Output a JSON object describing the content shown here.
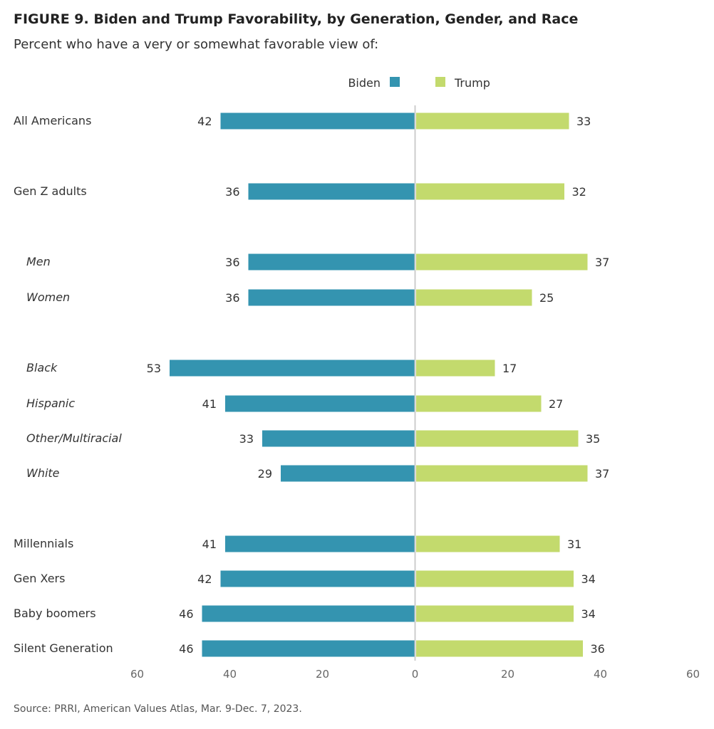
{
  "title": "FIGURE 9.  Biden and Trump Favorability, by Generation, Gender, and Race",
  "subtitle": "Percent who have a very or somewhat favorable view of:",
  "source": "Source: PRRI, American Values Atlas, Mar. 9-Dec. 7, 2023.",
  "colors": {
    "biden": "#3494b0",
    "trump": "#c3da6d",
    "axis": "#cccccc"
  },
  "chart_data": {
    "type": "bar",
    "orientation": "horizontal-diverging",
    "legend": {
      "placement": "top-center",
      "items": [
        "Biden",
        "Trump"
      ]
    },
    "categories": [
      "All Americans",
      "Gen Z adults",
      "Men",
      "Women",
      "Black",
      "Hispanic",
      "Other/Multiracial",
      "White",
      "Millennials",
      "Gen Xers",
      "Baby boomers",
      "Silent Generation"
    ],
    "italic_categories": [
      "Men",
      "Women",
      "Black",
      "Hispanic",
      "Other/Multiracial",
      "White"
    ],
    "series": [
      {
        "name": "Biden",
        "values": [
          42,
          36,
          36,
          36,
          53,
          41,
          33,
          29,
          41,
          42,
          46,
          46
        ]
      },
      {
        "name": "Trump",
        "values": [
          33,
          32,
          37,
          25,
          17,
          27,
          35,
          37,
          31,
          34,
          34,
          36
        ]
      }
    ],
    "xlim": [
      -60,
      60
    ],
    "tick_labels": [
      "60",
      "40",
      "20",
      "0",
      "20",
      "40",
      "60"
    ],
    "grid": false
  }
}
